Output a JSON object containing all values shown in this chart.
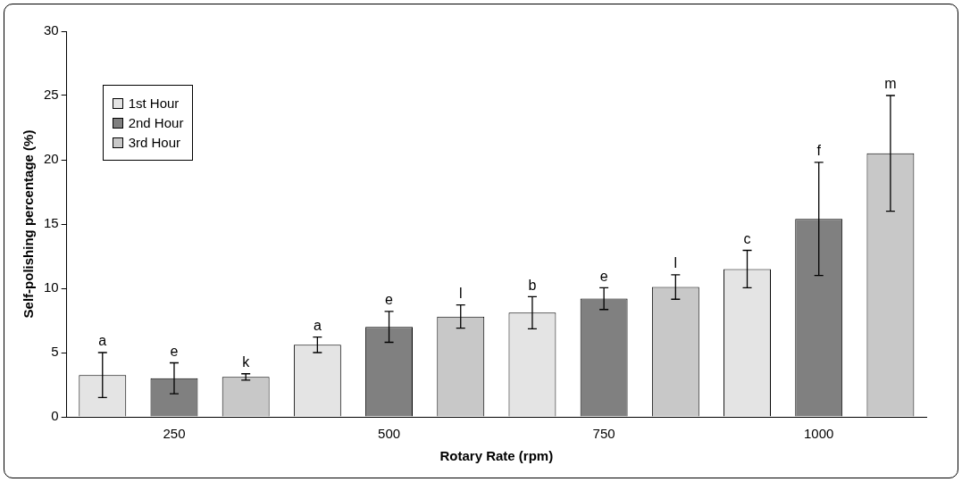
{
  "chart_data": {
    "type": "bar",
    "xlabel": "Rotary Rate (rpm)",
    "ylabel": "Self-polishing percentage (%)",
    "categories": [
      "250",
      "500",
      "750",
      "1000"
    ],
    "series": [
      {
        "name": "1st Hour",
        "color": "#e4e4e4",
        "values": [
          3.25,
          5.6,
          8.1,
          11.5
        ],
        "errors": [
          1.75,
          0.6,
          1.25,
          1.45
        ]
      },
      {
        "name": "2nd Hour",
        "color": "#808080",
        "values": [
          3.0,
          7.0,
          9.2,
          15.4
        ],
        "errors": [
          1.2,
          1.2,
          0.85,
          4.4
        ]
      },
      {
        "name": "3rd Hour",
        "color": "#c8c8c8",
        "values": [
          3.1,
          7.8,
          10.1,
          20.5
        ],
        "errors": [
          0.25,
          0.9,
          0.95,
          4.5
        ]
      }
    ],
    "ylim": [
      0,
      30
    ],
    "yticks": [
      0,
      5,
      10,
      15,
      20,
      25,
      30
    ],
    "grid": false,
    "legend": "top left",
    "annotations": [
      "a",
      "e",
      "k",
      "a",
      "e",
      "l",
      "b",
      "e",
      "l",
      "c",
      "f",
      "m"
    ]
  }
}
